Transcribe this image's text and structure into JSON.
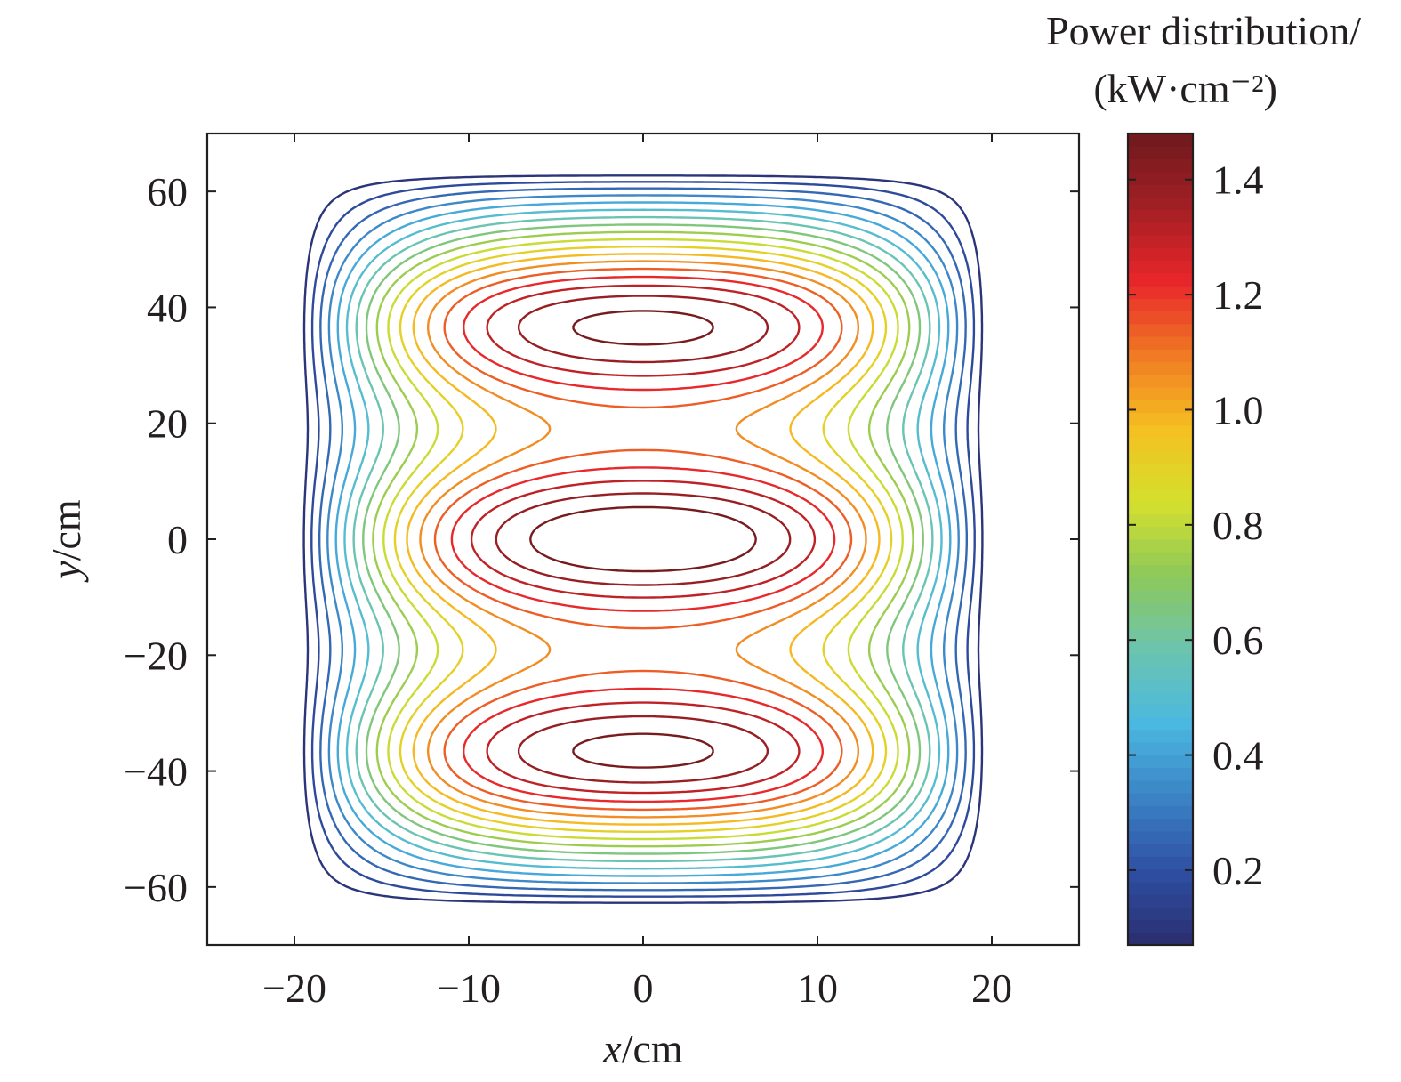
{
  "chart_data": {
    "type": "contour",
    "xlabel_var": "x",
    "xlabel_unit": "/cm",
    "ylabel_var": "y",
    "ylabel_unit": "/cm",
    "xlim": [
      -25,
      25
    ],
    "ylim": [
      -70,
      70
    ],
    "xticks": [
      -20,
      -10,
      0,
      10,
      20
    ],
    "xtick_labels": [
      "−20",
      "−10",
      "0",
      "10",
      "20"
    ],
    "yticks": [
      -60,
      -40,
      -20,
      0,
      20,
      40,
      60
    ],
    "ytick_labels": [
      "−60",
      "−40",
      "−20",
      "0",
      "20",
      "40",
      "60"
    ],
    "colorbar": {
      "title_line1": "Power distribution/",
      "title_line2": "(kW·cm⁻²)",
      "range": [
        0.07,
        1.48
      ],
      "ticks": [
        0.2,
        0.4,
        0.6,
        0.8,
        1.0,
        1.2,
        1.4
      ],
      "tick_labels": [
        "0.2",
        "0.4",
        "0.6",
        "0.8",
        "1.0",
        "1.2",
        "1.4"
      ],
      "colormap": [
        "#2b2d6e",
        "#2e4fa3",
        "#3b82c4",
        "#4ab8e0",
        "#6cc4b0",
        "#8dc85a",
        "#d4e02e",
        "#f5c021",
        "#f07a24",
        "#e8262a",
        "#a31f24",
        "#6e1a1d"
      ]
    },
    "contour_levels": [
      0.1,
      0.18,
      0.26,
      0.34,
      0.42,
      0.5,
      0.58,
      0.66,
      0.74,
      0.82,
      0.9,
      0.98,
      1.06,
      1.14,
      1.22,
      1.3,
      1.38,
      1.46
    ],
    "source_model": {
      "peaks_y": [
        -38,
        0,
        38
      ],
      "peak_sigma_y": 14.5,
      "profile_x_halfwidth": 20,
      "profile_y_halfwidth": 64
    }
  }
}
